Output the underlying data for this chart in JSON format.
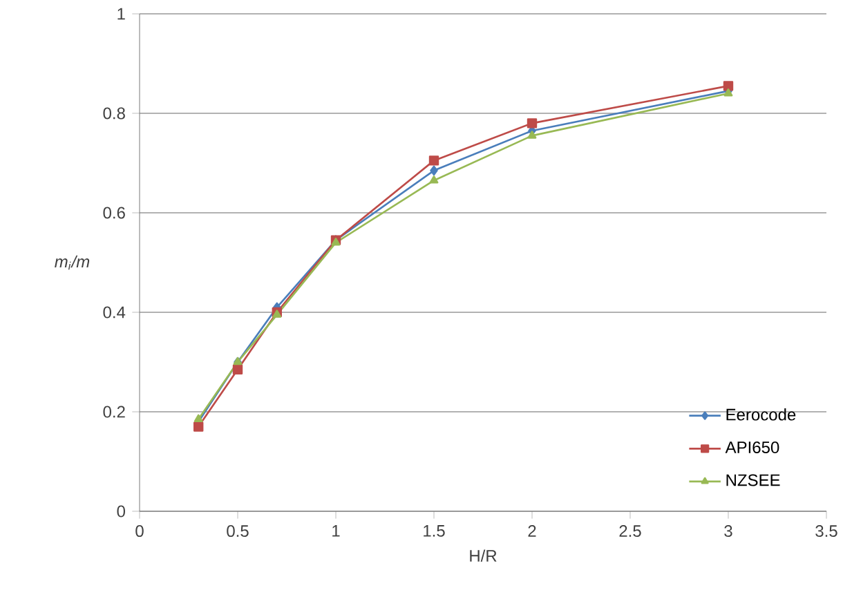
{
  "chart_data": {
    "type": "line",
    "xlabel": "H/R",
    "ylabel": "m$_{i}$/m",
    "xlim": [
      0,
      3.5
    ],
    "ylim": [
      0,
      1
    ],
    "xticks": [
      0,
      0.5,
      1,
      1.5,
      2,
      2.5,
      3,
      3.5
    ],
    "yticks": [
      0,
      0.2,
      0.4,
      0.6,
      0.8,
      1
    ],
    "grid": "y",
    "legend": "bottom right",
    "x": [
      0.3,
      0.5,
      0.7,
      1,
      1.5,
      2,
      3
    ],
    "series": [
      {
        "name": "Eerocode",
        "color": "#4a7ebb",
        "marker": "diamond",
        "values": [
          0.18,
          0.3,
          0.41,
          0.545,
          0.685,
          0.765,
          0.845
        ]
      },
      {
        "name": "API650",
        "color": "#be4b48",
        "marker": "square",
        "values": [
          0.17,
          0.285,
          0.4,
          0.545,
          0.705,
          0.78,
          0.855
        ]
      },
      {
        "name": "NZSEE",
        "color": "#98b954",
        "marker": "triangle",
        "values": [
          0.185,
          0.3,
          0.395,
          0.54,
          0.665,
          0.755,
          0.84
        ]
      }
    ]
  }
}
